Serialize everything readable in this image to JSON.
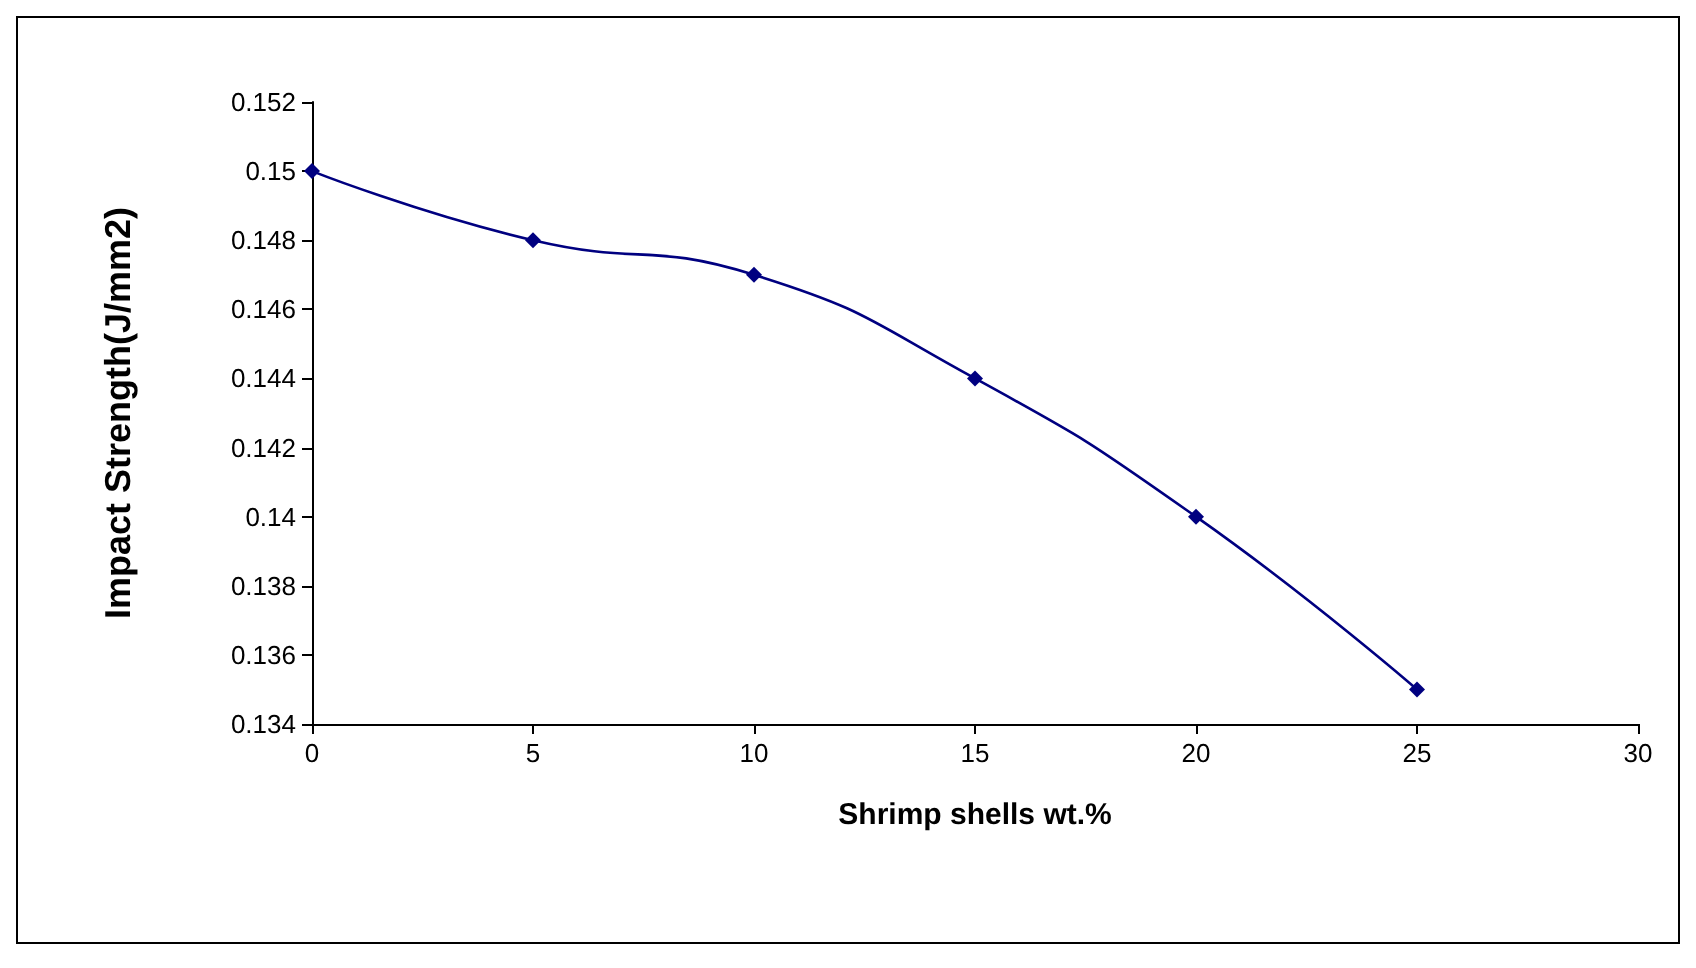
{
  "chart_data": {
    "type": "line",
    "xlabel": "Shrimp shells wt.%",
    "ylabel": "Impact Strength(J/mm2)",
    "x": [
      0,
      5,
      10,
      15,
      20,
      25
    ],
    "series": [
      {
        "color": "#000080",
        "values": [
          0.15,
          0.148,
          0.147,
          0.144,
          0.14,
          0.135
        ]
      }
    ],
    "xlim": [
      0,
      30
    ],
    "xticks": [
      0,
      5,
      10,
      15,
      20,
      25,
      30
    ],
    "ylim": [
      0.134,
      0.152
    ],
    "yticks": [
      0.134,
      0.136,
      0.138,
      0.14,
      0.142,
      0.144,
      0.146,
      0.148,
      0.15,
      0.152
    ],
    "grid": false,
    "marker": "diamond",
    "line_style": "solid"
  }
}
